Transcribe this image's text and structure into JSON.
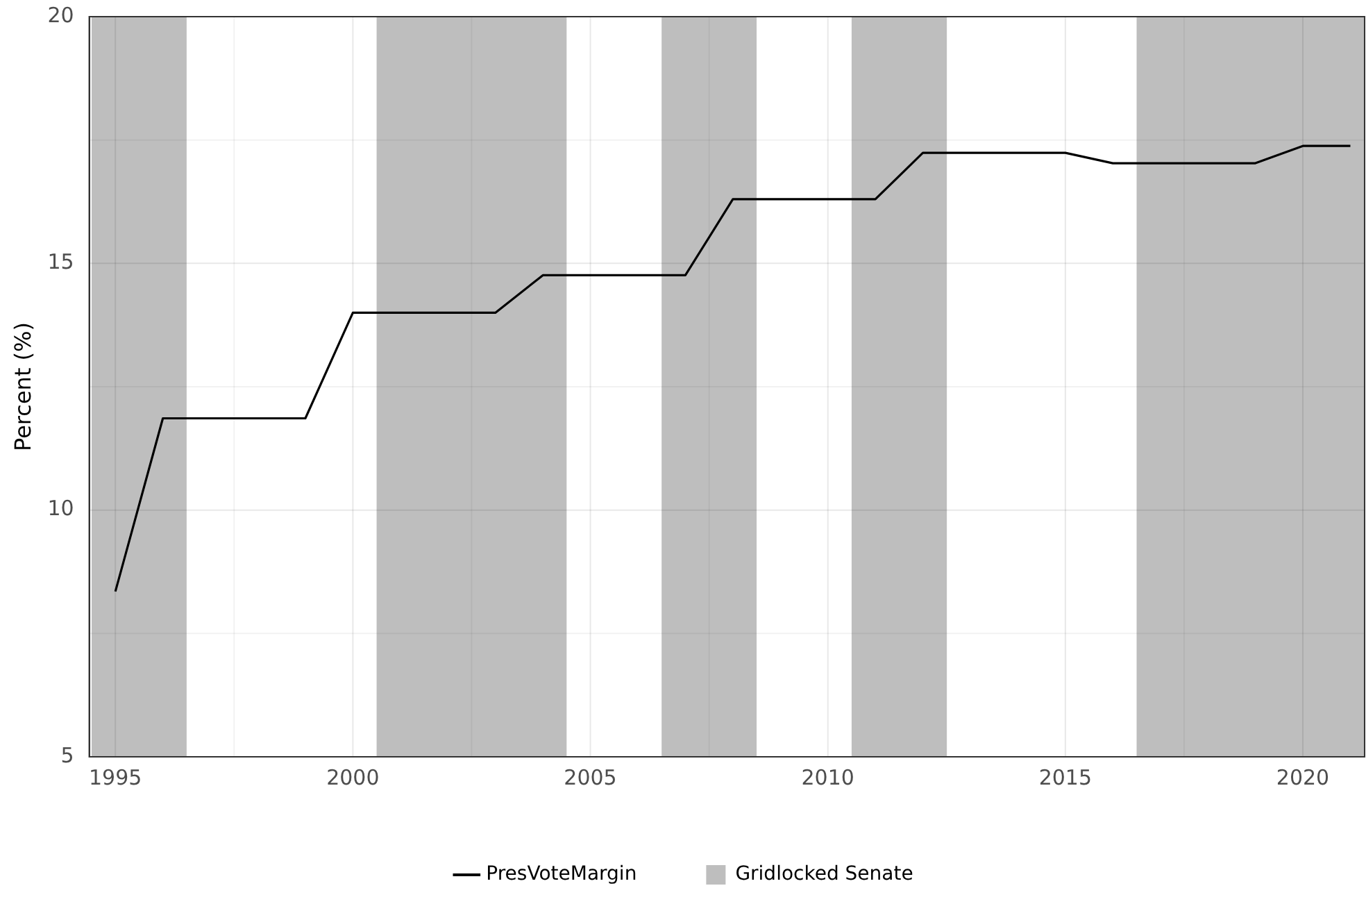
{
  "chart_data": {
    "type": "line",
    "ylabel": "Percent (%)",
    "x": [
      1995,
      1996,
      1997,
      1998,
      1999,
      2000,
      2001,
      2002,
      2003,
      2004,
      2005,
      2006,
      2007,
      2008,
      2009,
      2010,
      2011,
      2012,
      2013,
      2014,
      2015,
      2016,
      2017,
      2018,
      2019,
      2020,
      2021
    ],
    "series": [
      {
        "name": "PresVoteMargin",
        "color": "#000000",
        "values": [
          8.35,
          11.86,
          11.86,
          11.86,
          11.86,
          14.0,
          14.0,
          14.0,
          14.0,
          14.76,
          14.76,
          14.76,
          14.76,
          16.3,
          16.3,
          16.3,
          16.3,
          17.24,
          17.24,
          17.24,
          17.24,
          17.03,
          17.03,
          17.03,
          17.03,
          17.38,
          17.38
        ]
      }
    ],
    "bands": [
      {
        "axis": "x",
        "from": 1994.5,
        "to": 1996.5,
        "label": "Gridlocked Senate",
        "color": "#bebebe"
      },
      {
        "axis": "x",
        "from": 2000.5,
        "to": 2004.5,
        "color": "#bebebe"
      },
      {
        "axis": "x",
        "from": 2006.5,
        "to": 2008.5,
        "color": "#bebebe"
      },
      {
        "axis": "x",
        "from": 2010.5,
        "to": 2012.5,
        "color": "#bebebe"
      },
      {
        "axis": "x",
        "from": 2016.5,
        "to": 2021.3,
        "color": "#bebebe"
      }
    ],
    "xlim": [
      1994.45,
      2021.3
    ],
    "xticks": [
      1995,
      {
        "value": 1997.5,
        "label": null
      },
      2000,
      {
        "value": 2002.5,
        "label": null
      },
      2005,
      {
        "value": 2007.5,
        "label": null
      },
      2010,
      {
        "value": 2012.5,
        "label": null
      },
      2015,
      {
        "value": 2017.5,
        "label": null
      },
      2020
    ],
    "ylim": [
      5,
      20
    ],
    "yticks": [
      5,
      {
        "value": 7.5,
        "label": null
      },
      10,
      {
        "value": 12.5,
        "label": null
      },
      15,
      {
        "value": 17.5,
        "label": null
      },
      20
    ],
    "grid": true,
    "legend": "bottom",
    "marker": "none",
    "line_style": "solid"
  }
}
